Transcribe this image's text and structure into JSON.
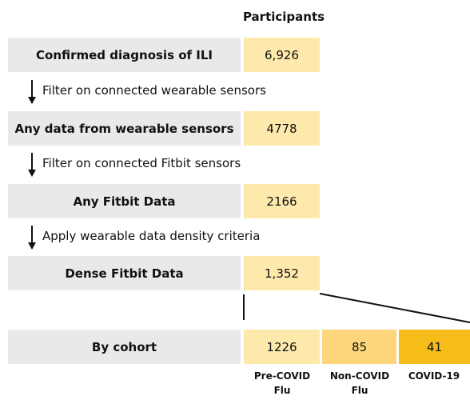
{
  "header": {
    "title": "Participants"
  },
  "steps": [
    {
      "label": "Confirmed diagnosis of ILI",
      "value": "6,926"
    },
    {
      "label": "Any data from wearable sensors",
      "value": "4778"
    },
    {
      "label": "Any Fitbit Data",
      "value": "2166"
    },
    {
      "label": "Dense Fitbit Data",
      "value": "1,352"
    }
  ],
  "filters": [
    "Filter on connected wearable sensors",
    "Filter on connected Fitbit sensors",
    "Apply wearable data density criteria"
  ],
  "cohort": {
    "label": "By cohort",
    "groups": [
      {
        "name": "Pre-COVID Flu",
        "value": "1226"
      },
      {
        "name": "Non-COVID Flu",
        "value": "85"
      },
      {
        "name": "COVID-19",
        "value": "41"
      }
    ]
  }
}
